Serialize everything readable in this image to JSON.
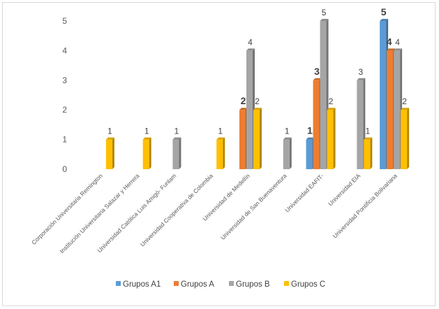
{
  "chart_data": {
    "type": "bar",
    "subtype": "3d-clustered-column",
    "categories": [
      "Corporación Universitaria Remington",
      "Institución Universitaria  Salazar y Herrera",
      "Universidad Católica Luis Amigó- Funlam",
      "Universidad Cooperativa de Colombia",
      "Universidad de Medellín",
      "Universidad de San Buenaventura",
      "Universidad EAFIT-",
      "Universidad EIA",
      "Universidad Pontificia Bolivariana"
    ],
    "series": [
      {
        "name": "Grupos A1",
        "color": "#5b9bd5",
        "values": [
          null,
          null,
          null,
          null,
          null,
          null,
          1,
          null,
          5
        ]
      },
      {
        "name": "Grupos A",
        "color": "#ed7d31",
        "values": [
          null,
          null,
          null,
          null,
          2,
          null,
          3,
          null,
          4
        ]
      },
      {
        "name": "Grupos B",
        "color": "#a5a5a5",
        "values": [
          null,
          null,
          1,
          null,
          4,
          1,
          5,
          3,
          4
        ]
      },
      {
        "name": "Grupos C",
        "color": "#ffc000",
        "values": [
          1,
          1,
          null,
          1,
          2,
          null,
          2,
          1,
          2
        ]
      }
    ],
    "ylim": [
      0,
      5
    ],
    "yticks": [
      "0",
      "1",
      "2",
      "3",
      "4",
      "5"
    ],
    "grid": false,
    "legend_position": "bottom",
    "data_labels": true
  }
}
